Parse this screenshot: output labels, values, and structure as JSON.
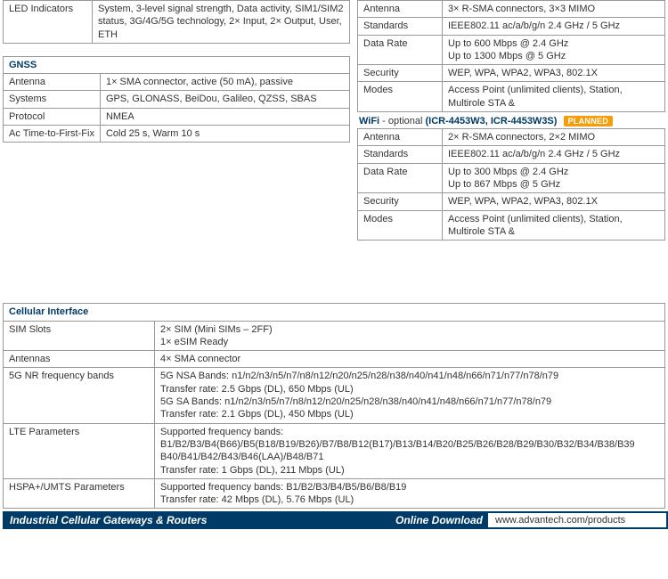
{
  "colors": {
    "headerText": "#003a66",
    "border": "#999999",
    "badgeBg": "#f59e0b",
    "footerBg": "#003a66"
  },
  "led": {
    "label": "LED Indicators",
    "value": "System, 3-level signal strength, Data activity, SIM1/SIM2 status, 3G/4G/5G technology, 2× Input, 2× Output, User, ETH"
  },
  "gnss": {
    "header": "GNSS",
    "rows": [
      {
        "label": "Antenna",
        "value": "1× SMA connector, active (50 mA), passive"
      },
      {
        "label": "Systems",
        "value": "GPS, GLONASS, BeiDou, Galileo, QZSS, SBAS"
      },
      {
        "label": "Protocol",
        "value": "NMEA"
      },
      {
        "label": "Ac Time-to-First-Fix",
        "value": "Cold 25 s, Warm 10 s"
      }
    ]
  },
  "wifiTop": {
    "rows": [
      {
        "label": "Antenna",
        "value": "3× R-SMA connectors, 3×3 MIMO"
      },
      {
        "label": "Standards",
        "value": "IEEE802.11 ac/a/b/g/n 2.4 GHz / 5 GHz"
      },
      {
        "label": "Data Rate",
        "value": "Up to 600 Mbps @ 2.4 GHz\nUp to 1300 Mbps @ 5 GHz"
      },
      {
        "label": "Security",
        "value": "WEP, WPA, WPA2, WPA3, 802.1X"
      },
      {
        "label": "Modes",
        "value": "Access Point (unlimited clients), Station, Multirole STA &"
      }
    ]
  },
  "wifiOpt": {
    "titlePrefix": "WiFi",
    "optionalText": " - optional",
    "models": "(ICR-4453W3, ICR-4453W3S)",
    "badge": "PLANNED",
    "rows": [
      {
        "label": "Antenna",
        "value": "2× R-SMA connectors, 2×2 MIMO"
      },
      {
        "label": "Standards",
        "value": "IEEE802.11 ac/a/b/g/n 2.4 GHz / 5 GHz"
      },
      {
        "label": "Data Rate",
        "value": "Up to 300 Mbps @ 2.4 GHz\nUp to 867 Mbps @ 5 GHz"
      },
      {
        "label": "Security",
        "value": "WEP, WPA, WPA2, WPA3, 802.1X"
      },
      {
        "label": "Modes",
        "value": "Access Point (unlimited clients), Station, Multirole STA &"
      }
    ]
  },
  "cellular": {
    "header": "Cellular Interface",
    "rows": [
      {
        "label": "SIM Slots",
        "value": "2× SIM (Mini SIMs – 2FF)\n1× eSIM Ready"
      },
      {
        "label": "Antennas",
        "value": "4× SMA connector"
      },
      {
        "label": "5G NR frequency bands",
        "value": "5G NSA Bands: n1/n2/n3/n5/n7/n8/n12/n20/n25/n28/n38/n40/n41/n48/n66/n71/n77/n78/n79\nTransfer rate: 2.5 Gbps (DL), 650 Mbps (UL)\n5G SA Bands: n1/n2/n3/n5/n7/n8/n12/n20/n25/n28/n38/n40/n41/n48/n66/n71/n77/n78/n79\nTransfer rate: 2.1 Gbps (DL), 450 Mbps (UL)"
      },
      {
        "label": "LTE Parameters",
        "value": "Supported frequency bands: B1/B2/B3/B4(B66)/B5(B18/B19/B26)/B7/B8/B12(B17)/B13/B14/B20/B25/B26/B28/B29/B30/B32/B34/B38/B39\nB40/B41/B42/B43/B46(LAA)/B48/B71\nTransfer rate: 1 Gbps (DL), 211 Mbps (UL)"
      },
      {
        "label": "HSPA+/UMTS Parameters",
        "value": "Supported frequency bands: B1/B2/B3/B4/B5/B6/B8/B19\nTransfer rate: 42 Mbps (DL), 5.76 Mbps (UL)"
      }
    ]
  },
  "footer": {
    "left": "Industrial Cellular Gateways & Routers",
    "download": "Online Download",
    "url": "www.advantech.com/products"
  }
}
